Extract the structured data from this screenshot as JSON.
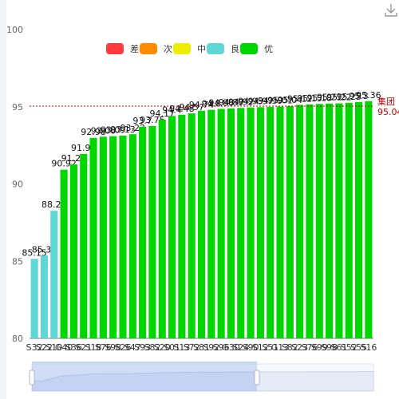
{
  "toolbar": {
    "download_icon": "download-icon"
  },
  "chart_data": {
    "type": "bar",
    "title": "",
    "xlabel": "",
    "ylabel": "",
    "ylim": [
      80,
      100
    ],
    "yticks": [
      80,
      85,
      90,
      95,
      100
    ],
    "legend": {
      "placement": "top-center",
      "items": [
        {
          "label": "差",
          "color": "#ff3b3b"
        },
        {
          "label": "次",
          "color": "#ff8c00"
        },
        {
          "label": "中",
          "color": "#eeee00"
        },
        {
          "label": "良",
          "color": "#5fd7d7"
        },
        {
          "label": "优",
          "color": "#00d600"
        }
      ]
    },
    "categories": [
      "S32",
      "S22",
      "S10",
      "G40",
      "S36",
      "S21",
      "S18",
      "S76",
      "S98",
      "S26",
      "S47",
      "S93",
      "S82",
      "S20",
      "S01",
      "S13",
      "S72",
      "S81",
      "S92",
      "S96",
      "G30",
      "S24",
      "S90",
      "S12",
      "S51",
      "G13",
      "S82",
      "S23",
      "S76",
      "S99",
      "S98",
      "S61",
      "S52",
      "S55",
      "S16"
    ],
    "values": [
      85.15,
      85.36,
      88.26,
      90.92,
      91.27,
      91.94,
      92.98,
      93.06,
      93.09,
      93.13,
      93.22,
      93.7,
      93.75,
      94.17,
      94.4,
      94.48,
      94.57,
      94.74,
      94.8,
      94.86,
      94.89,
      94.92,
      94.95,
      94.97,
      94.99,
      95.01,
      95.04,
      95.12,
      95.15,
      95.18,
      95.21,
      95.22,
      95.25,
      95.3,
      95.36
    ],
    "colors": [
      "#5fd7d7",
      "#5fd7d7",
      "#5fd7d7",
      "#00d600",
      "#00d600",
      "#00d600",
      "#00d600",
      "#00d600",
      "#00d600",
      "#00d600",
      "#00d600",
      "#00d600",
      "#00d600",
      "#00d600",
      "#00d600",
      "#00d600",
      "#00d600",
      "#00d600",
      "#00d600",
      "#00d600",
      "#00d600",
      "#00d600",
      "#00d600",
      "#00d600",
      "#00d600",
      "#00d600",
      "#00d600",
      "#00d600",
      "#00d600",
      "#00d600",
      "#00d600",
      "#00d600",
      "#00d600",
      "#00d600",
      "#00d600"
    ],
    "reference_line": {
      "label": "集团",
      "value": 95.04,
      "value_label": "95.04",
      "color": "#c00000"
    },
    "grid": false
  }
}
